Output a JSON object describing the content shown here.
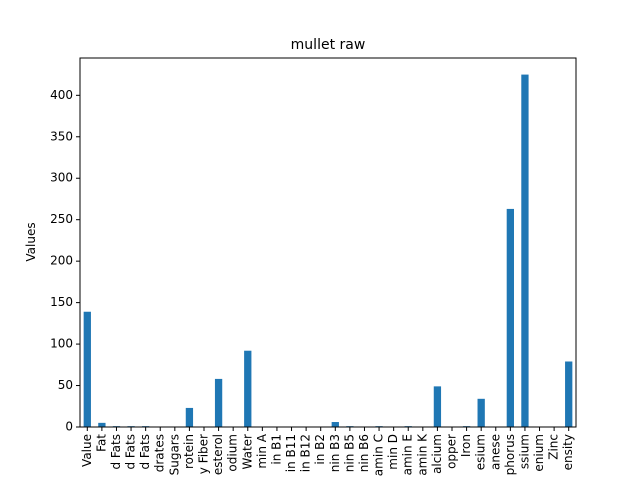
{
  "chart_data": {
    "type": "bar",
    "title": "mullet raw",
    "xlabel": "",
    "ylabel": "Values",
    "ylim": [
      0,
      445
    ],
    "yticks": [
      0,
      50,
      100,
      150,
      200,
      250,
      300,
      350,
      400
    ],
    "grid": false,
    "legend": "none",
    "bar_color": "#1f77b4",
    "categories": [
      "Value",
      "Fat",
      "d Fats",
      "d Fats",
      "d Fats",
      "drates",
      "Sugars",
      "rotein",
      "y Fiber",
      "esterol",
      "odium",
      "Water",
      "min A",
      "in B1",
      "in B11",
      "in B12",
      "in B2",
      "nin B3",
      "nin B5",
      "nin B6",
      "amin C",
      "min D",
      "amin E",
      "amin K",
      "alcium",
      "opper",
      "Iron",
      "esium",
      "anese",
      "phorus",
      "ssium",
      "enium",
      "Zinc",
      "ensity"
    ],
    "values": [
      139,
      5,
      1,
      1,
      1,
      0,
      0,
      23,
      0,
      58,
      0,
      92,
      0,
      0,
      0,
      0,
      0,
      6,
      1,
      0,
      1,
      0,
      1,
      0,
      49,
      0,
      1,
      34,
      0,
      263,
      425,
      0,
      0,
      79
    ]
  }
}
